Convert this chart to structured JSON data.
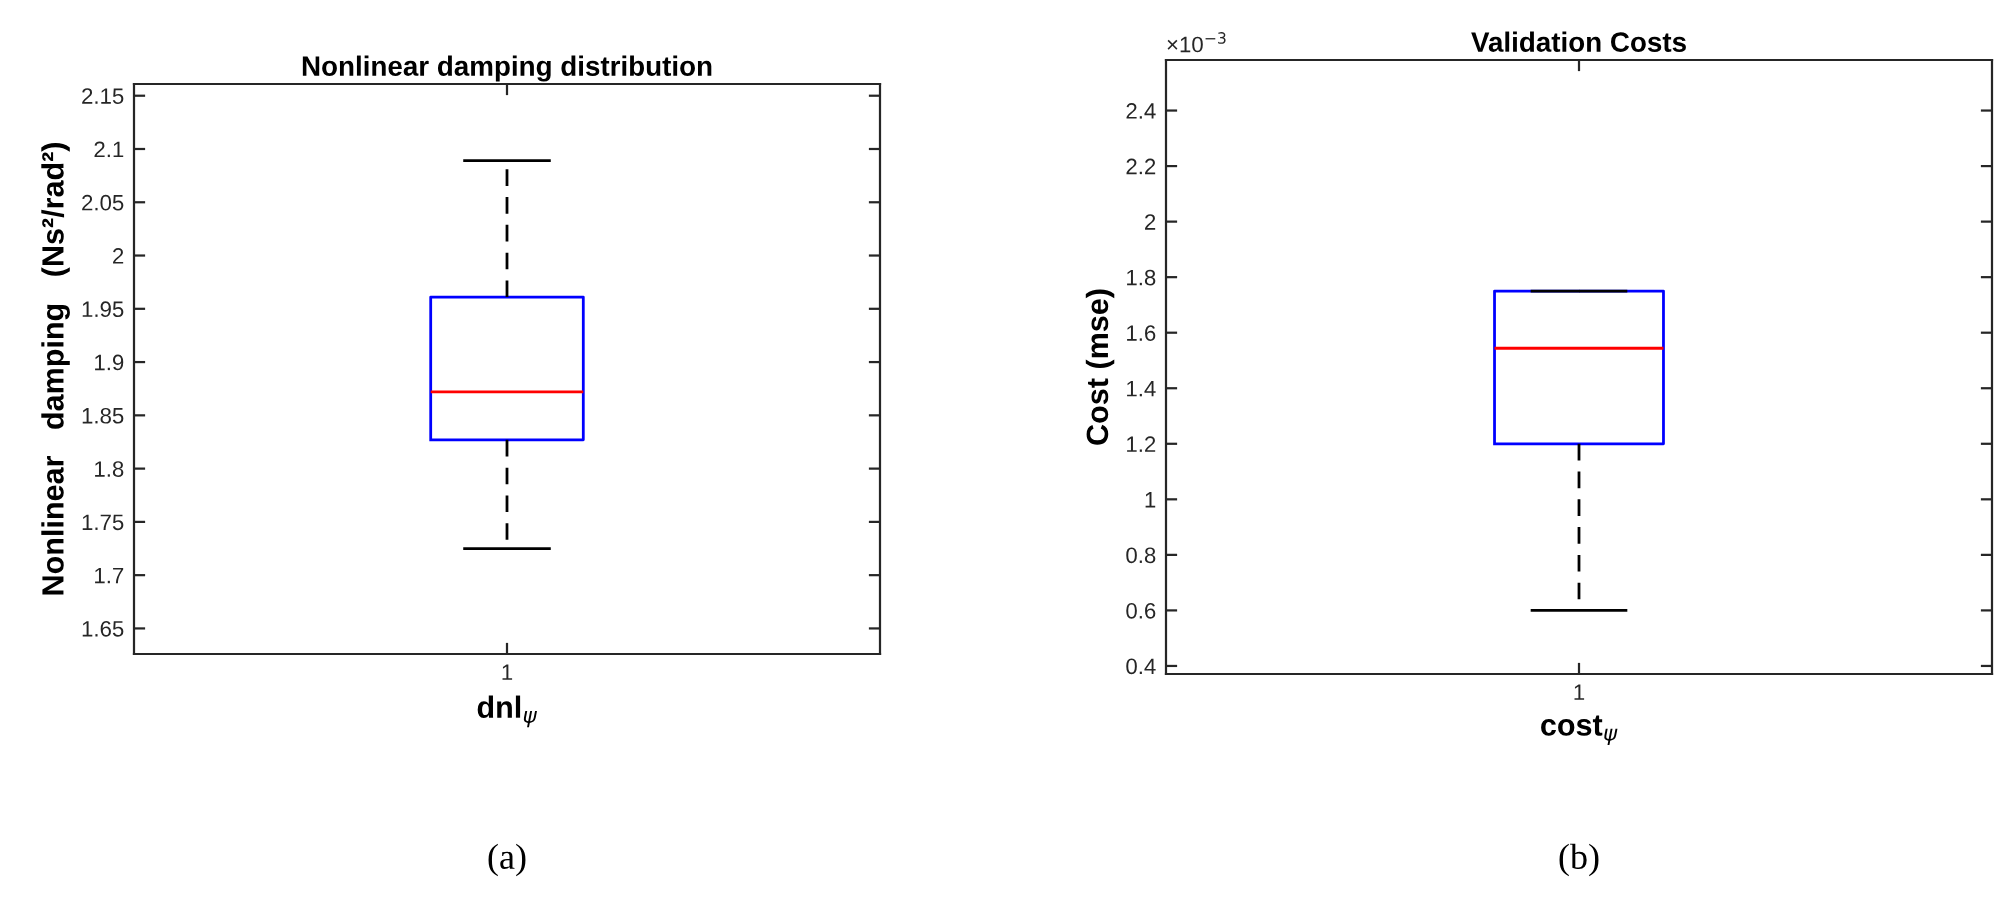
{
  "chart_data": [
    {
      "type": "box",
      "title": "Nonlinear damping distribution",
      "xlabel": "dnl$_{ψ}$",
      "ylabel": "Nonlinear   damping   (Ns²/rad²)",
      "categories": [
        "1"
      ],
      "boxes": [
        {
          "low": 1.725,
          "q1": 1.827,
          "median": 1.872,
          "q3": 1.961,
          "high": 2.089
        }
      ],
      "ylim": [
        1.626,
        2.161
      ],
      "yticks": [
        1.65,
        1.7,
        1.75,
        1.8,
        1.85,
        1.9,
        1.95,
        2,
        2.05,
        2.1,
        2.15
      ],
      "grid": false,
      "annotations": [
        "(a)"
      ]
    },
    {
      "type": "box",
      "title": "Validation Costs",
      "xlabel": "cost$_{ψ}$",
      "ylabel": "Cost (mse)",
      "categories": [
        "1"
      ],
      "boxes": [
        {
          "low": 0.6,
          "q1": 1.2,
          "median": 1.544,
          "q3": 1.75,
          "high": 1.75
        }
      ],
      "ylim": [
        0.371,
        2.582
      ],
      "yticks": [
        0.4,
        0.6,
        0.8,
        1,
        1.2,
        1.4,
        1.6,
        1.8,
        2,
        2.2,
        2.4
      ],
      "grid": false,
      "annotations": [
        "×10$^{−3}$",
        "(b)"
      ]
    }
  ]
}
